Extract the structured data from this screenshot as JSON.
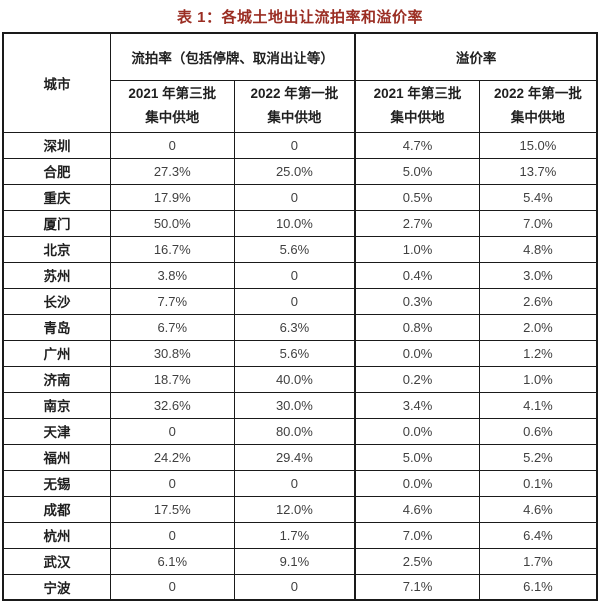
{
  "title": "表 1：各城土地出让流拍率和溢价率",
  "colors": {
    "title_text": "#9a2d22",
    "header_text": "#1f1f1f",
    "value_text": "#404040",
    "border": "#1a1a1a",
    "background": "#ffffff"
  },
  "table": {
    "city_header": "城市",
    "groups": [
      {
        "label": "流拍率（包括停牌、取消出让等）"
      },
      {
        "label": "溢价率"
      }
    ],
    "subheaders": [
      {
        "line1": "2021 年第三批",
        "line2": "集中供地"
      },
      {
        "line1": "2022 年第一批",
        "line2": "集中供地"
      },
      {
        "line1": "2021 年第三批",
        "line2": "集中供地"
      },
      {
        "line1": "2022 年第一批",
        "line2": "集中供地"
      }
    ],
    "rows": [
      {
        "city": "深圳",
        "values": [
          "0",
          "0",
          "4.7%",
          "15.0%"
        ]
      },
      {
        "city": "合肥",
        "values": [
          "27.3%",
          "25.0%",
          "5.0%",
          "13.7%"
        ]
      },
      {
        "city": "重庆",
        "values": [
          "17.9%",
          "0",
          "0.5%",
          "5.4%"
        ]
      },
      {
        "city": "厦门",
        "values": [
          "50.0%",
          "10.0%",
          "2.7%",
          "7.0%"
        ]
      },
      {
        "city": "北京",
        "values": [
          "16.7%",
          "5.6%",
          "1.0%",
          "4.8%"
        ]
      },
      {
        "city": "苏州",
        "values": [
          "3.8%",
          "0",
          "0.4%",
          "3.0%"
        ]
      },
      {
        "city": "长沙",
        "values": [
          "7.7%",
          "0",
          "0.3%",
          "2.6%"
        ]
      },
      {
        "city": "青岛",
        "values": [
          "6.7%",
          "6.3%",
          "0.8%",
          "2.0%"
        ]
      },
      {
        "city": "广州",
        "values": [
          "30.8%",
          "5.6%",
          "0.0%",
          "1.2%"
        ]
      },
      {
        "city": "济南",
        "values": [
          "18.7%",
          "40.0%",
          "0.2%",
          "1.0%"
        ]
      },
      {
        "city": "南京",
        "values": [
          "32.6%",
          "30.0%",
          "3.4%",
          "4.1%"
        ]
      },
      {
        "city": "天津",
        "values": [
          "0",
          "80.0%",
          "0.0%",
          "0.6%"
        ]
      },
      {
        "city": "福州",
        "values": [
          "24.2%",
          "29.4%",
          "5.0%",
          "5.2%"
        ]
      },
      {
        "city": "无锡",
        "values": [
          "0",
          "0",
          "0.0%",
          "0.1%"
        ]
      },
      {
        "city": "成都",
        "values": [
          "17.5%",
          "12.0%",
          "4.6%",
          "4.6%"
        ]
      },
      {
        "city": "杭州",
        "values": [
          "0",
          "1.7%",
          "7.0%",
          "6.4%"
        ]
      },
      {
        "city": "武汉",
        "values": [
          "6.1%",
          "9.1%",
          "2.5%",
          "1.7%"
        ]
      },
      {
        "city": "宁波",
        "values": [
          "0",
          "0",
          "7.1%",
          "6.1%"
        ]
      }
    ]
  }
}
